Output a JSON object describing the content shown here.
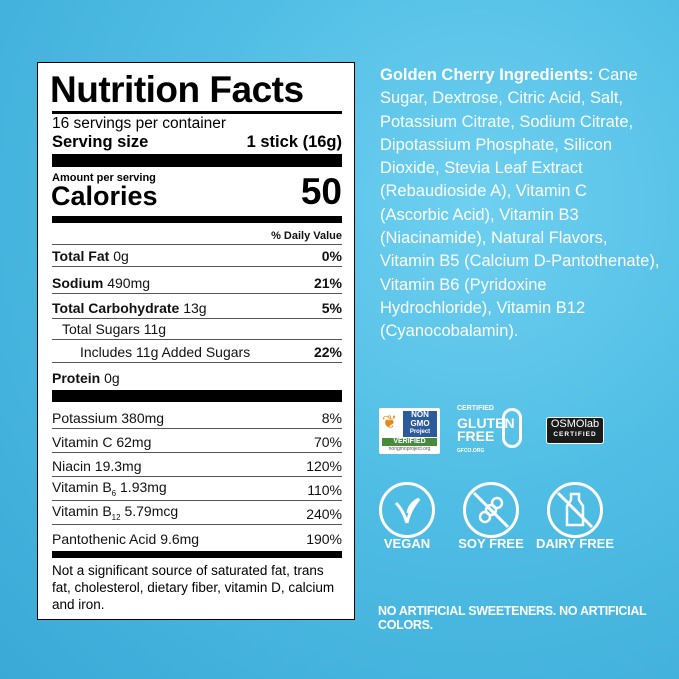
{
  "label": {
    "title": "Nutrition Facts",
    "servings": "16 servings per container",
    "serving_size_label": "Serving size",
    "serving_size_value": "1 stick (16g)",
    "amount_per_serving": "Amount per serving",
    "calories_label": "Calories",
    "calories_value": "50",
    "dv_header": "% Daily Value",
    "rows": [
      {
        "name": "Total Fat",
        "amount": "0g",
        "dv": "0%"
      },
      {
        "name": "Sodium",
        "amount": "490mg",
        "dv": "21%"
      },
      {
        "name": "Total Carbohydrate",
        "amount": "13g",
        "dv": "5%"
      },
      {
        "name": "Total Sugars 11g",
        "amount": "",
        "dv": ""
      },
      {
        "name": "Includes 11g Added Sugars",
        "amount": "",
        "dv": "22%"
      },
      {
        "name": "Protein",
        "amount": "0g",
        "dv": ""
      }
    ],
    "vitamins": [
      {
        "name": "Potassium",
        "amount": "380mg",
        "dv": "8%"
      },
      {
        "name": "Vitamin C",
        "amount": "62mg",
        "dv": "70%"
      },
      {
        "name": "Niacin",
        "amount": "19.3mg",
        "dv": "120%"
      },
      {
        "name": "Vitamin B",
        "sub": "6",
        "amount": "1.93mg",
        "dv": "110%"
      },
      {
        "name": "Vitamin B",
        "sub": "12",
        "amount": "5.79mcg",
        "dv": "240%"
      },
      {
        "name": "Pantothenic Acid",
        "amount": "9.6mg",
        "dv": "190%"
      }
    ],
    "footnote": "Not a significant source of saturated fat, trans fat, cholesterol, dietary fiber, vitamin D, calcium and iron."
  },
  "ingredients": {
    "title": "Golden Cherry Ingredients:",
    "text": "Cane Sugar, Dextrose, Citric Acid, Salt, Potassium Citrate, Sodium Citrate, Dipotassium Phosphate, Silicon Dioxide, Stevia Leaf Extract (Rebaudioside A), Vitamin C (Ascorbic Acid), Vitamin B3 (Niacinamide), Natural Flavors, Vitamin B5 (Calcium D-Pantothenate), Vitamin B6 (Pyridoxine Hydrochloride), Vitamin B12 (Cyanocobalamin)."
  },
  "certifications": {
    "nongmo": {
      "line1": "NON",
      "line2": "GMO",
      "line3": "Project",
      "verified": "VERIFIED",
      "url": "nongmoproject.org"
    },
    "gluten": {
      "top": "CERTIFIED",
      "line1": "GLUTEN",
      "line2": "FREE",
      "url": "GFCO.ORG"
    },
    "osmo": {
      "name": "OSMOlab",
      "sub": "CERTIFIED"
    }
  },
  "badges": [
    {
      "label": "VEGAN",
      "icon": "leaf-icon"
    },
    {
      "label": "SOY FREE",
      "icon": "no-soy-icon"
    },
    {
      "label": "DAIRY FREE",
      "icon": "milk-bottle-icon"
    }
  ],
  "footer": "NO ARTIFICIAL SWEETENERS. NO ARTIFICIAL COLORS.",
  "colors": {
    "background": "#4fbde4",
    "text": "#ffffff",
    "label_bg": "#ffffff"
  }
}
